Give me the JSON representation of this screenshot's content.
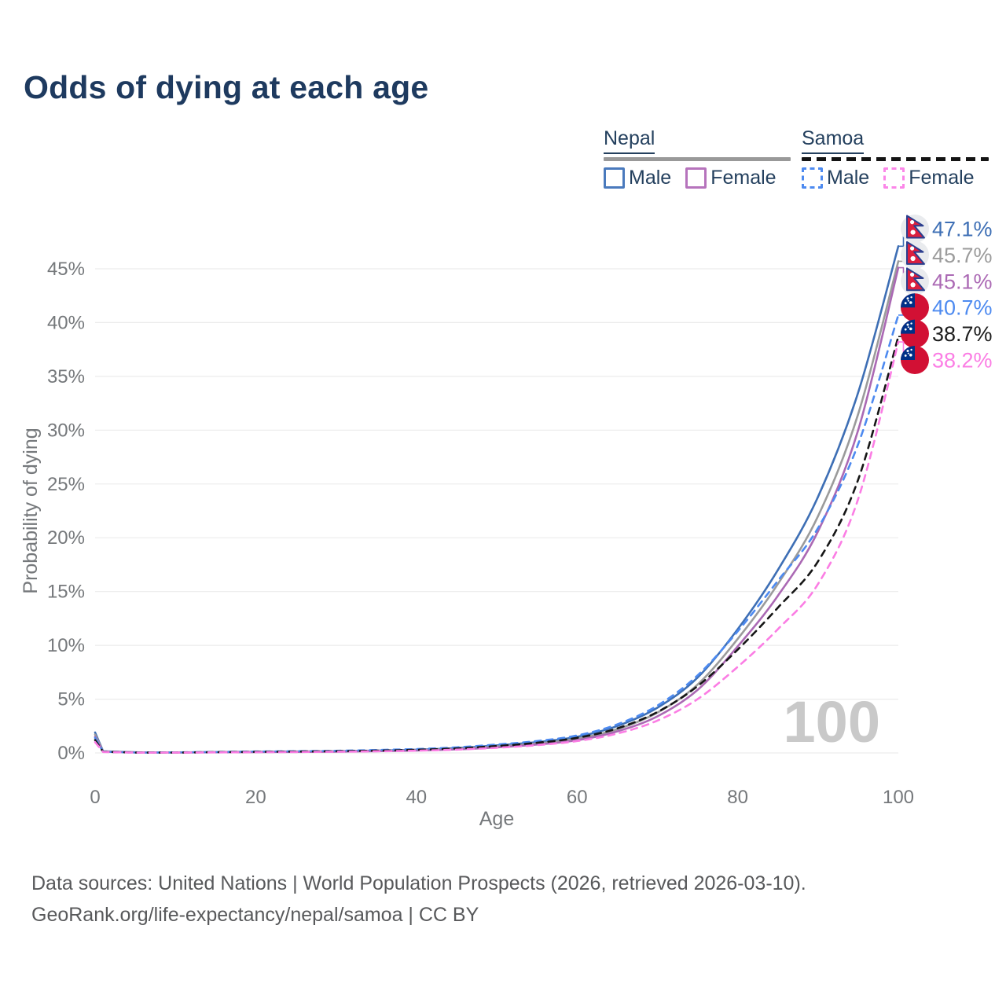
{
  "title": "Odds of dying at each age",
  "legend": {
    "groups": [
      {
        "name": "Nepal",
        "line_style": "solid",
        "bar_color": "#999999",
        "items": [
          {
            "label": "Male",
            "color": "#4a7abd"
          },
          {
            "label": "Female",
            "color": "#b673bc"
          }
        ]
      },
      {
        "name": "Samoa",
        "line_style": "dashed",
        "bar_color": "#141414",
        "items": [
          {
            "label": "Male",
            "color": "#4d8af0"
          },
          {
            "label": "Female",
            "color": "#fb86e8"
          }
        ]
      }
    ]
  },
  "chart_data": {
    "type": "line",
    "title": "Odds of dying at each age",
    "xlabel": "Age",
    "ylabel": "Probability of dying",
    "x_ticks": [
      0,
      20,
      40,
      60,
      80,
      100
    ],
    "y_ticks_percent": [
      0,
      5,
      10,
      15,
      20,
      25,
      30,
      35,
      40,
      45
    ],
    "xlim": [
      0,
      100
    ],
    "ylim_percent": [
      0,
      48
    ],
    "grid": "horizontal",
    "watermark": "100",
    "ages": [
      0,
      1,
      5,
      10,
      15,
      20,
      25,
      30,
      35,
      40,
      45,
      50,
      55,
      60,
      65,
      70,
      75,
      80,
      85,
      90,
      95,
      100
    ],
    "series": [
      {
        "id": "nepal-male",
        "name": "Nepal Male",
        "country": "Nepal",
        "sex": "male",
        "flag": "nepal",
        "color": "#3e6fb5",
        "label_color": "#3e6fb5",
        "dashed": false,
        "end_label": "47.1%",
        "end_value_percent": 47.1,
        "values_percent": [
          1.9,
          0.15,
          0.06,
          0.05,
          0.08,
          0.11,
          0.13,
          0.16,
          0.22,
          0.3,
          0.45,
          0.7,
          1.0,
          1.5,
          2.5,
          4.2,
          7.0,
          11.5,
          17.0,
          23.8,
          33.5,
          47.1
        ]
      },
      {
        "id": "nepal-average",
        "name": "Nepal (both sexes)",
        "country": "Nepal",
        "sex": "both",
        "flag": "nepal",
        "color": "#9b9b9b",
        "label_color": "#9b9b9b",
        "dashed": false,
        "end_label": "45.7%",
        "end_value_percent": 45.7,
        "values_percent": [
          1.7,
          0.13,
          0.05,
          0.04,
          0.07,
          0.09,
          0.11,
          0.14,
          0.18,
          0.26,
          0.38,
          0.6,
          0.88,
          1.32,
          2.2,
          3.75,
          6.35,
          10.6,
          15.7,
          22.0,
          31.5,
          45.7
        ]
      },
      {
        "id": "nepal-female",
        "name": "Nepal Female",
        "country": "Nepal",
        "sex": "female",
        "flag": "nepal",
        "color": "#ab69b4",
        "label_color": "#ab69b4",
        "dashed": false,
        "end_label": "45.1%",
        "end_value_percent": 45.1,
        "values_percent": [
          1.5,
          0.12,
          0.05,
          0.04,
          0.06,
          0.08,
          0.09,
          0.12,
          0.16,
          0.22,
          0.33,
          0.52,
          0.78,
          1.18,
          2.0,
          3.4,
          5.85,
          9.9,
          14.6,
          20.6,
          30.0,
          45.1
        ]
      },
      {
        "id": "samoa-male",
        "name": "Samoa Male",
        "country": "Samoa",
        "sex": "male",
        "flag": "samoa",
        "color": "#4d8af0",
        "label_color": "#4d8af0",
        "dashed": true,
        "end_label": "40.7%",
        "end_value_percent": 40.7,
        "values_percent": [
          1.4,
          0.11,
          0.04,
          0.05,
          0.09,
          0.13,
          0.16,
          0.2,
          0.27,
          0.36,
          0.52,
          0.78,
          1.1,
          1.62,
          2.65,
          4.4,
          7.2,
          11.3,
          16.0,
          20.9,
          28.7,
          40.7
        ]
      },
      {
        "id": "samoa-average",
        "name": "Samoa (both sexes)",
        "country": "Samoa",
        "sex": "both",
        "flag": "samoa",
        "color": "#161616",
        "label_color": "#1c1c1c",
        "dashed": true,
        "end_label": "38.7%",
        "end_value_percent": 38.7,
        "values_percent": [
          1.2,
          0.1,
          0.04,
          0.04,
          0.07,
          0.1,
          0.13,
          0.16,
          0.21,
          0.29,
          0.42,
          0.64,
          0.94,
          1.4,
          2.28,
          3.8,
          6.2,
          9.6,
          13.5,
          17.8,
          25.4,
          38.7
        ]
      },
      {
        "id": "samoa-female",
        "name": "Samoa Female",
        "country": "Samoa",
        "sex": "female",
        "flag": "samoa",
        "color": "#fb7de4",
        "label_color": "#fb7de4",
        "dashed": true,
        "end_label": "38.2%",
        "end_value_percent": 38.2,
        "values_percent": [
          1.0,
          0.09,
          0.03,
          0.03,
          0.05,
          0.07,
          0.09,
          0.11,
          0.15,
          0.21,
          0.31,
          0.48,
          0.72,
          1.1,
          1.8,
          3.0,
          5.0,
          8.0,
          11.5,
          15.7,
          23.6,
          38.2
        ]
      }
    ],
    "legend_position": "top-right"
  },
  "footer": {
    "line1": "Data sources: United Nations | World Population Prospects (2026, retrieved 2026-03-10).",
    "line2": "GeoRank.org/life-expectancy/nepal/samoa | CC BY"
  },
  "colors": {
    "title_text": "#1e3a5f",
    "legend_text": "#24405e",
    "axis_text": "#75787b",
    "gridline": "#ececec",
    "watermark": "#c9c9c9",
    "footer_text": "#58595b",
    "nepal_flag_red": "#dc1f3e",
    "nepal_flag_border": "#2a3f8f",
    "samoa_flag_red": "#d21034",
    "samoa_flag_blue": "#003087"
  }
}
